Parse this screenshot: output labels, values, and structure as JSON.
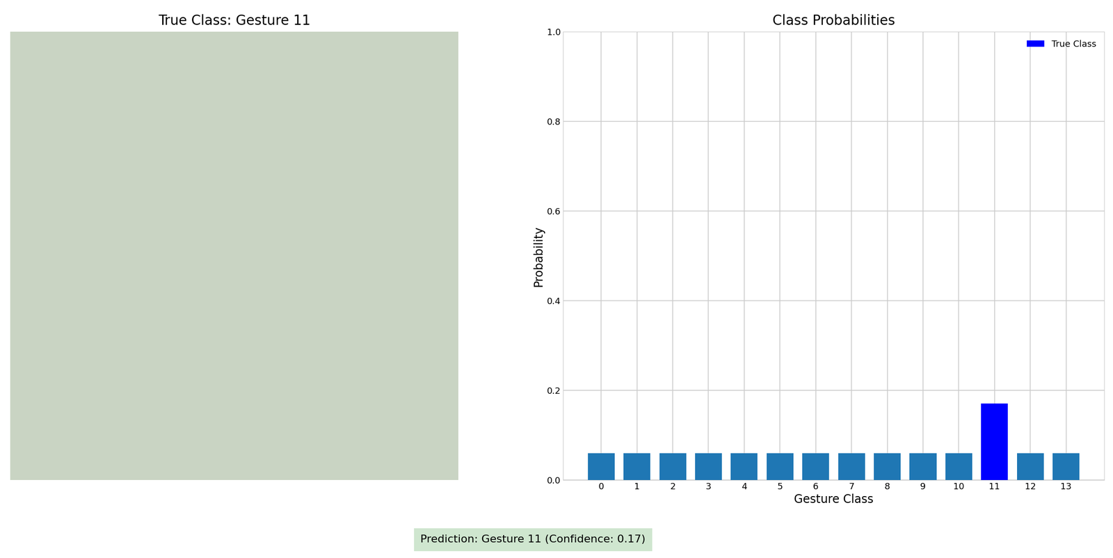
{
  "image_panel": {
    "title": "True Class: Gesture 11"
  },
  "chart_data": {
    "type": "bar",
    "title": "Class Probabilities",
    "x_label": "Gesture Class",
    "y_label": "Probability",
    "categories": [
      "0",
      "1",
      "2",
      "3",
      "4",
      "5",
      "6",
      "7",
      "8",
      "9",
      "10",
      "11",
      "12",
      "13"
    ],
    "values": [
      0.06,
      0.06,
      0.06,
      0.06,
      0.06,
      0.06,
      0.06,
      0.06,
      0.06,
      0.06,
      0.06,
      0.17,
      0.06,
      0.06
    ],
    "colors": [
      "#1f77b4",
      "#1f77b4",
      "#1f77b4",
      "#1f77b4",
      "#1f77b4",
      "#1f77b4",
      "#1f77b4",
      "#1f77b4",
      "#1f77b4",
      "#1f77b4",
      "#1f77b4",
      "blue",
      "#1f77b4",
      "#1f77b4"
    ],
    "legend_entries": [
      {
        "name": "True Class",
        "color": "blue"
      }
    ],
    "legend": "upper right",
    "ylim": [
      0,
      1
    ],
    "yticks": [
      {
        "value": 0,
        "label": "0.0"
      },
      0.2,
      0.4,
      0.6,
      0.8,
      {
        "value": 1,
        "label": "1.0"
      }
    ],
    "grid": true
  },
  "footer": {
    "text": "Prediction: Gesture 11 (Confidence: 0.17)"
  }
}
